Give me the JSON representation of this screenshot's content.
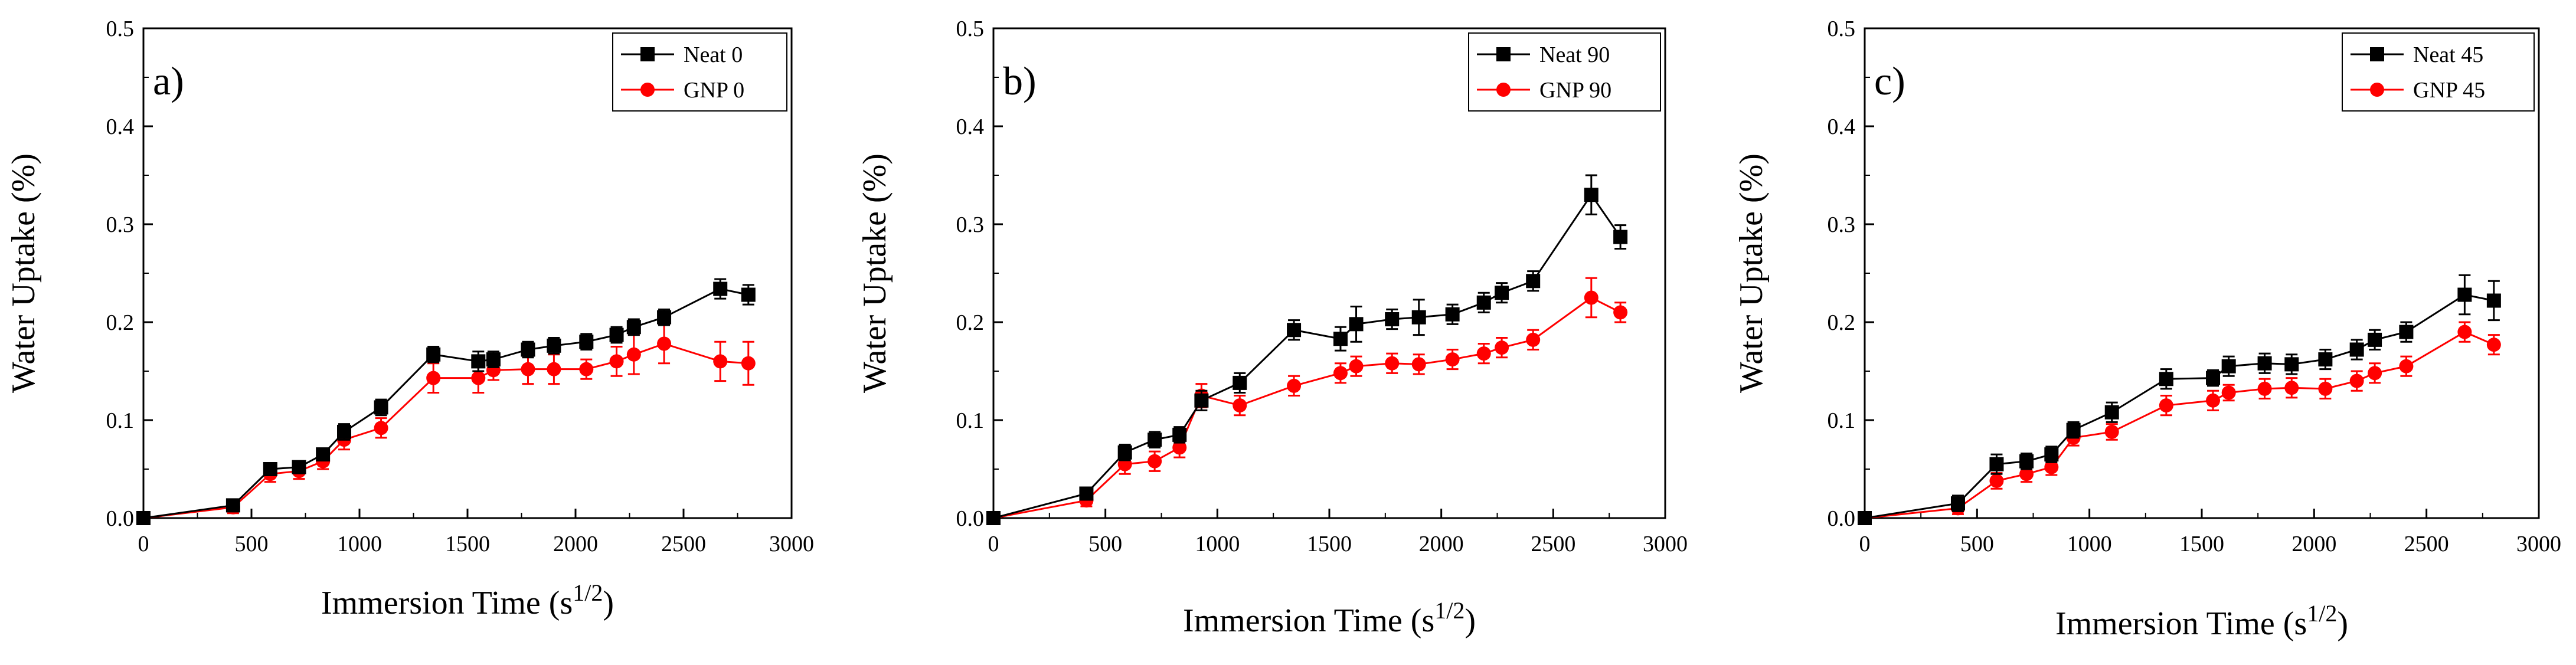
{
  "chart_data": [
    {
      "type": "line",
      "panel_label": "a)",
      "xlabel": "Immersion Time (s",
      "xlabel_sup": "1/2",
      "xlabel_end": ")",
      "ylabel": "Water Uptake (%)",
      "xlim": [
        0,
        3000
      ],
      "ylim": [
        0,
        0.5
      ],
      "xticks": [
        0,
        500,
        1000,
        1500,
        2000,
        2500,
        3000
      ],
      "yticks": [
        0.0,
        0.1,
        0.2,
        0.3,
        0.4,
        0.5
      ],
      "xtick_labels": [
        "0",
        "500",
        "1000",
        "1500",
        "2000",
        "2500",
        "3000"
      ],
      "ytick_labels": [
        "0.0",
        "0.1",
        "0.2",
        "0.3",
        "0.4",
        "0.5"
      ],
      "legend_position": "top-right",
      "series": [
        {
          "name": "Neat 0",
          "color": "#000000",
          "marker": "square",
          "x": [
            0,
            415,
            587,
            720,
            831,
            929,
            1100,
            1342,
            1550,
            1620,
            1780,
            1900,
            2050,
            2190,
            2270,
            2410,
            2670,
            2800
          ],
          "y": [
            0.0,
            0.013,
            0.05,
            0.052,
            0.065,
            0.088,
            0.113,
            0.167,
            0.16,
            0.162,
            0.172,
            0.176,
            0.18,
            0.187,
            0.195,
            0.205,
            0.234,
            0.228
          ],
          "err": [
            0,
            0.006,
            0.006,
            0.006,
            0.006,
            0.008,
            0.008,
            0.008,
            0.01,
            0.008,
            0.008,
            0.008,
            0.008,
            0.008,
            0.008,
            0.008,
            0.01,
            0.01
          ]
        },
        {
          "name": "GNP 0",
          "color": "#ff0000",
          "marker": "circle",
          "x": [
            0,
            415,
            587,
            720,
            831,
            929,
            1100,
            1342,
            1550,
            1620,
            1780,
            1900,
            2050,
            2190,
            2270,
            2410,
            2670,
            2800
          ],
          "y": [
            0.0,
            0.011,
            0.045,
            0.048,
            0.058,
            0.08,
            0.092,
            0.143,
            0.143,
            0.151,
            0.152,
            0.152,
            0.152,
            0.16,
            0.167,
            0.178,
            0.16,
            0.158
          ],
          "err": [
            0,
            0.006,
            0.008,
            0.008,
            0.008,
            0.01,
            0.01,
            0.015,
            0.015,
            0.01,
            0.015,
            0.015,
            0.01,
            0.015,
            0.02,
            0.02,
            0.02,
            0.022
          ]
        }
      ]
    },
    {
      "type": "line",
      "panel_label": "b)",
      "xlabel": "Immersion Time (s",
      "xlabel_sup": "1/2",
      "xlabel_end": ")",
      "ylabel": "Water Uptake (%)",
      "xlim": [
        0,
        3000
      ],
      "ylim": [
        0,
        0.5
      ],
      "xticks": [
        0,
        500,
        1000,
        1500,
        2000,
        2500,
        3000
      ],
      "yticks": [
        0.0,
        0.1,
        0.2,
        0.3,
        0.4,
        0.5
      ],
      "xtick_labels": [
        "0",
        "500",
        "1000",
        "1500",
        "2000",
        "2500",
        "3000"
      ],
      "ytick_labels": [
        "0.0",
        "0.1",
        "0.2",
        "0.3",
        "0.4",
        "0.5"
      ],
      "legend_position": "top-right",
      "series": [
        {
          "name": "Neat 90",
          "color": "#000000",
          "marker": "square",
          "x": [
            0,
            415,
            587,
            720,
            831,
            929,
            1100,
            1342,
            1550,
            1620,
            1780,
            1900,
            2050,
            2190,
            2270,
            2410,
            2670,
            2800
          ],
          "y": [
            0.0,
            0.025,
            0.067,
            0.08,
            0.085,
            0.12,
            0.138,
            0.192,
            0.183,
            0.198,
            0.203,
            0.205,
            0.208,
            0.22,
            0.23,
            0.242,
            0.33,
            0.287
          ],
          "err": [
            0,
            0.006,
            0.008,
            0.008,
            0.008,
            0.01,
            0.01,
            0.01,
            0.012,
            0.018,
            0.01,
            0.018,
            0.01,
            0.01,
            0.01,
            0.01,
            0.02,
            0.012
          ]
        },
        {
          "name": "GNP 90",
          "color": "#ff0000",
          "marker": "circle",
          "x": [
            0,
            415,
            587,
            720,
            831,
            929,
            1100,
            1342,
            1550,
            1620,
            1780,
            1900,
            2050,
            2190,
            2270,
            2410,
            2670,
            2800
          ],
          "y": [
            0.0,
            0.018,
            0.055,
            0.058,
            0.072,
            0.125,
            0.115,
            0.135,
            0.148,
            0.155,
            0.158,
            0.157,
            0.162,
            0.168,
            0.174,
            0.182,
            0.225,
            0.21
          ],
          "err": [
            0,
            0.006,
            0.01,
            0.01,
            0.01,
            0.012,
            0.01,
            0.01,
            0.01,
            0.01,
            0.01,
            0.01,
            0.01,
            0.01,
            0.01,
            0.01,
            0.02,
            0.01
          ]
        }
      ]
    },
    {
      "type": "line",
      "panel_label": "c)",
      "xlabel": "Immersion Time (s",
      "xlabel_sup": "1/2",
      "xlabel_end": ")",
      "ylabel": "Water Uptake (%)",
      "xlim": [
        0,
        3000
      ],
      "ylim": [
        0,
        0.5
      ],
      "xticks": [
        0,
        500,
        1000,
        1500,
        2000,
        2500,
        3000
      ],
      "yticks": [
        0.0,
        0.1,
        0.2,
        0.3,
        0.4,
        0.5
      ],
      "xtick_labels": [
        "0",
        "500",
        "1000",
        "1500",
        "2000",
        "2500",
        "3000"
      ],
      "ytick_labels": [
        "0.0",
        "0.1",
        "0.2",
        "0.3",
        "0.4",
        "0.5"
      ],
      "legend_position": "top-right",
      "series": [
        {
          "name": "Neat 45",
          "color": "#000000",
          "marker": "square",
          "x": [
            0,
            415,
            587,
            720,
            831,
            929,
            1100,
            1342,
            1550,
            1620,
            1780,
            1900,
            2050,
            2190,
            2270,
            2410,
            2670,
            2800
          ],
          "y": [
            0.0,
            0.015,
            0.055,
            0.058,
            0.065,
            0.09,
            0.108,
            0.142,
            0.143,
            0.155,
            0.158,
            0.157,
            0.162,
            0.172,
            0.182,
            0.19,
            0.228,
            0.222
          ],
          "err": [
            0,
            0.008,
            0.01,
            0.008,
            0.008,
            0.008,
            0.01,
            0.01,
            0.008,
            0.01,
            0.01,
            0.01,
            0.01,
            0.01,
            0.01,
            0.01,
            0.02,
            0.02
          ]
        },
        {
          "name": "GNP 45",
          "color": "#ff0000",
          "marker": "circle",
          "x": [
            0,
            415,
            587,
            720,
            831,
            929,
            1100,
            1342,
            1550,
            1620,
            1780,
            1900,
            2050,
            2190,
            2270,
            2410,
            2670,
            2800
          ],
          "y": [
            0.0,
            0.01,
            0.038,
            0.045,
            0.052,
            0.082,
            0.088,
            0.115,
            0.12,
            0.128,
            0.132,
            0.133,
            0.132,
            0.14,
            0.148,
            0.155,
            0.19,
            0.177
          ],
          "err": [
            0,
            0.006,
            0.008,
            0.008,
            0.008,
            0.008,
            0.008,
            0.01,
            0.01,
            0.008,
            0.01,
            0.01,
            0.01,
            0.01,
            0.01,
            0.01,
            0.01,
            0.01
          ]
        }
      ]
    }
  ]
}
